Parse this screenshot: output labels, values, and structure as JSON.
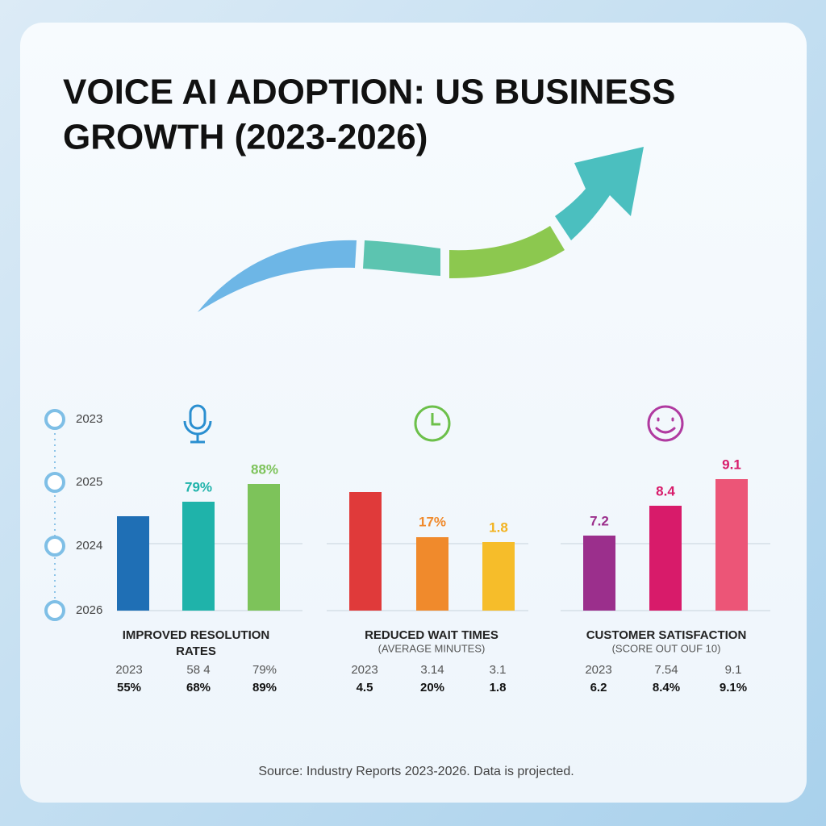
{
  "title": [
    "VOICE AI ADOPTION: US BUSINESS",
    "GROWTH (2023-2026)"
  ],
  "timeline": [
    "2023",
    "2025",
    "2024",
    "2026"
  ],
  "panels": [
    {
      "bar_labels": [
        "79%",
        "88%"
      ],
      "title": [
        "IMPROVED RESOLUTION",
        "RATES"
      ],
      "rows": [
        [
          "2023",
          "58 4",
          "79%"
        ],
        [
          "55%",
          "68%",
          "89%"
        ]
      ]
    },
    {
      "bar_labels": [
        "17%",
        "1.8"
      ],
      "title": [
        "REDUCED WAIT TIMES"
      ],
      "subtitle": "(AVERAGE MINUTES)",
      "rows": [
        [
          "2023",
          "3.14",
          "3.1"
        ],
        [
          "4.5",
          "20%",
          "1.8"
        ]
      ]
    },
    {
      "bar_labels": [
        "7.2",
        "8.4",
        "9.1"
      ],
      "title": [
        "CUSTOMER SATISFACTION"
      ],
      "subtitle": "(SCORE OUT OUF 10)",
      "rows": [
        [
          "2023",
          "7.54",
          "9.1"
        ],
        [
          "6.2",
          "8.4%",
          "9.1%"
        ]
      ]
    }
  ],
  "source": "Source: Industry Reports 2023-2026. Data is projected."
}
